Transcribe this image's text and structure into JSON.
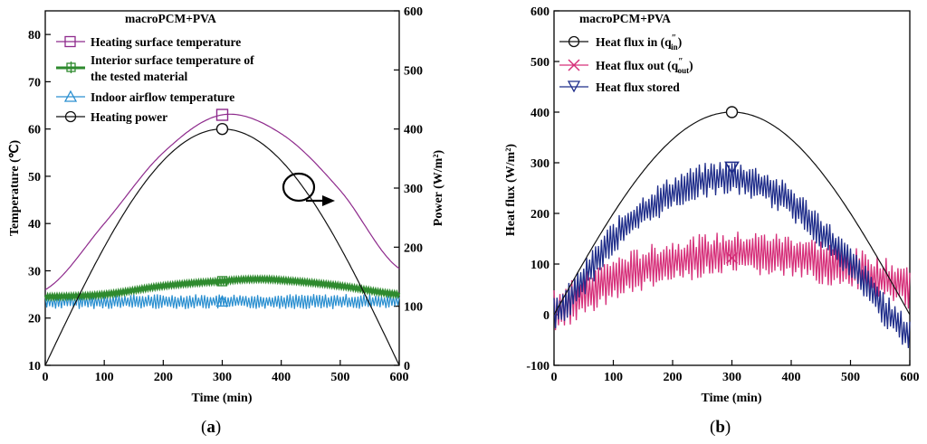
{
  "chart_data": [
    {
      "id": "a",
      "type": "line",
      "caption_letter": "a",
      "title": "macroPCM+PVA",
      "xlabel": "Time (min)",
      "ylabel_left": "Temperature (℃)",
      "ylabel_right": "Power (W/m²)",
      "xlim": [
        0,
        600
      ],
      "ylim_left": [
        10,
        85
      ],
      "ylim_right": [
        0,
        600
      ],
      "xticks": [
        "0",
        "100",
        "200",
        "300",
        "400",
        "500",
        "600"
      ],
      "yticks_left": [
        "10",
        "20",
        "30",
        "40",
        "50",
        "60",
        "70",
        "80"
      ],
      "yticks_right": [
        "0",
        "100",
        "200",
        "300",
        "400",
        "500",
        "600"
      ],
      "series": [
        {
          "name": "Heating surface temperature",
          "axis": "left",
          "color": "#8e2a8c",
          "marker": "square",
          "x": [
            0,
            100,
            200,
            300,
            400,
            500,
            600
          ],
          "values": [
            26.0,
            40.0,
            55.0,
            63.0,
            59.0,
            47.0,
            30.5
          ]
        },
        {
          "name": "Interior surface temperature of the tested material",
          "legend_lines": [
            "Interior surface temperature of",
            "the tested material"
          ],
          "axis": "left",
          "color": "#2e8a2e",
          "marker": "square-cross",
          "x": [
            0,
            100,
            200,
            300,
            350,
            400,
            500,
            600
          ],
          "values": [
            24.5,
            25.0,
            26.8,
            27.8,
            28.2,
            28.0,
            26.8,
            25.0
          ]
        },
        {
          "name": "Indoor airflow temperature",
          "axis": "left",
          "color": "#2a8fd0",
          "marker": "triangle",
          "x": [
            0,
            600
          ],
          "values": [
            23.5,
            23.5
          ],
          "fluctuation": 1.6
        },
        {
          "name": "Heating power",
          "axis": "right",
          "color": "#111111",
          "marker": "circle",
          "x": [
            0,
            100,
            200,
            300,
            400,
            500,
            600
          ],
          "values": [
            0,
            200,
            346,
            400,
            346,
            200,
            0
          ]
        }
      ],
      "annotations": [
        "arrow pointing to Power axis"
      ]
    },
    {
      "id": "b",
      "type": "line",
      "caption_letter": "b",
      "title": "macroPCM+PVA",
      "xlabel": "Time (min)",
      "ylabel": "Heat flux (W/m²)",
      "xlim": [
        0,
        600
      ],
      "ylim": [
        -100,
        600
      ],
      "xticks": [
        "0",
        "100",
        "200",
        "300",
        "400",
        "500",
        "600"
      ],
      "yticks": [
        "-100",
        "0",
        "100",
        "200",
        "300",
        "400",
        "500",
        "600"
      ],
      "series": [
        {
          "name": "Heat flux in (q″in)",
          "legend_main": "Heat flux in (q",
          "legend_sup": "″",
          "legend_sub": "in",
          "legend_tail": ")",
          "color": "#111111",
          "marker": "circle",
          "x": [
            0,
            100,
            200,
            300,
            400,
            500,
            600
          ],
          "values": [
            0,
            200,
            346,
            400,
            346,
            200,
            0
          ]
        },
        {
          "name": "Heat flux out (q″out)",
          "legend_main": "Heat flux out (q",
          "legend_sup": "″",
          "legend_sub": "out",
          "legend_tail": ")",
          "color": "#d6307a",
          "marker": "x",
          "x": [
            0,
            100,
            200,
            300,
            400,
            500,
            600
          ],
          "values": [
            10,
            70,
            105,
            120,
            115,
            90,
            55
          ],
          "fluctuation": 45
        },
        {
          "name": "Heat flux stored",
          "color": "#1f2d8a",
          "marker": "triangle-down",
          "x": [
            0,
            100,
            200,
            300,
            400,
            500,
            600
          ],
          "values": [
            0,
            150,
            240,
            270,
            220,
            100,
            -40
          ],
          "fluctuation": 35
        }
      ]
    }
  ]
}
